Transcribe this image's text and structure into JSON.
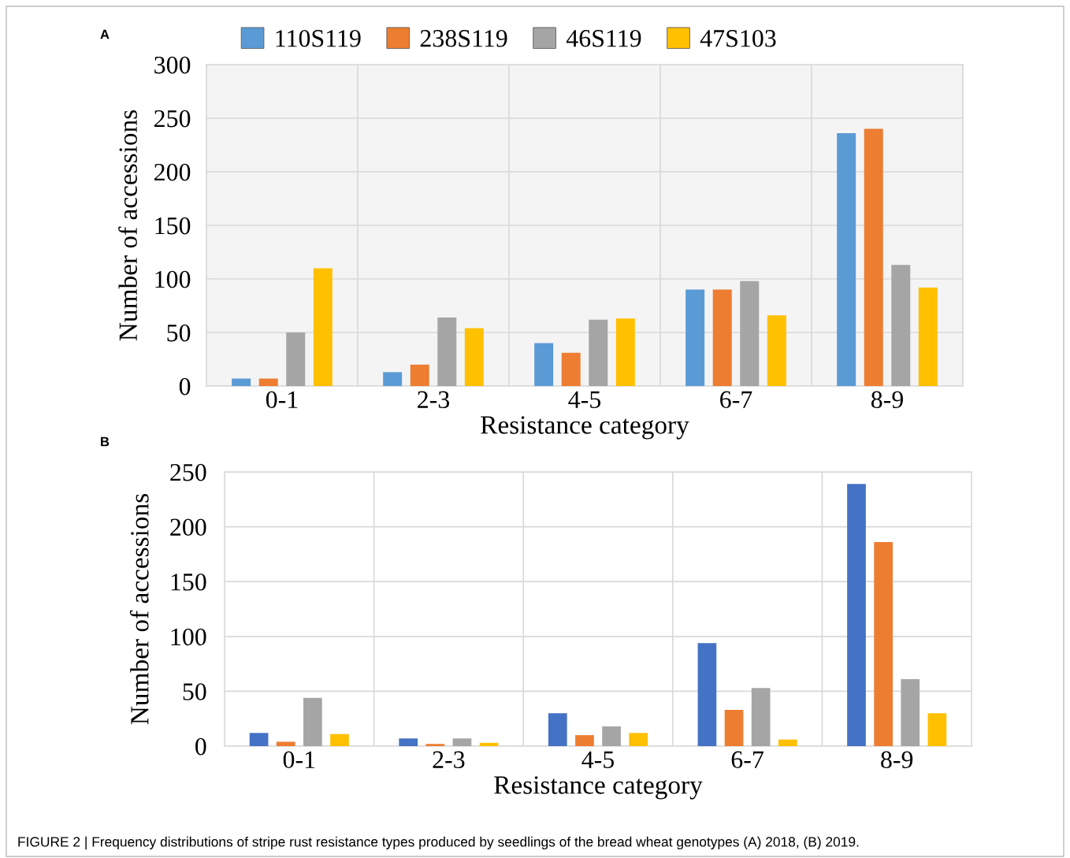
{
  "chart_data": [
    {
      "type": "bar",
      "title": "A",
      "categories": [
        "0-1",
        "2-3",
        "4-5",
        "6-7",
        "8-9"
      ],
      "xlabel": "Resistance category",
      "ylabel": "Number of accessions",
      "series": [
        {
          "name": "110S119",
          "color": "#5b9bd5",
          "values": [
            7,
            13,
            40,
            90,
            236
          ]
        },
        {
          "name": "238S119",
          "color": "#ed7d31",
          "values": [
            7,
            20,
            31,
            90,
            240
          ]
        },
        {
          "name": "46S119",
          "color": "#a5a5a5",
          "values": [
            50,
            64,
            62,
            98,
            113
          ]
        },
        {
          "name": "47S103",
          "color": "#ffc000",
          "values": [
            110,
            54,
            63,
            66,
            92
          ]
        }
      ],
      "ylim": [
        0,
        300
      ],
      "yticks": [
        0,
        50,
        100,
        150,
        200,
        250,
        300
      ],
      "grid": true,
      "legend": "top"
    },
    {
      "type": "bar",
      "title": "B",
      "categories": [
        "0-1",
        "2-3",
        "4-5",
        "6-7",
        "8-9"
      ],
      "xlabel": "Resistance category",
      "ylabel": "Number of accessions",
      "series": [
        {
          "color": "#4472c4",
          "values": [
            12,
            7,
            30,
            94,
            239
          ]
        },
        {
          "color": "#ed7d31",
          "values": [
            4,
            2,
            10,
            33,
            186
          ]
        },
        {
          "color": "#a5a5a5",
          "values": [
            44,
            7,
            18,
            53,
            61
          ]
        },
        {
          "color": "#ffc000",
          "values": [
            11,
            3,
            12,
            6,
            30
          ]
        }
      ],
      "ylim": [
        0,
        250
      ],
      "yticks": [
        0,
        50,
        100,
        150,
        200,
        250
      ],
      "grid": true,
      "annotations": [
        "FIGURE 2 | Frequency distributions of stripe rust resistance types produced by seedlings of the bread wheat genotypes (A) 2018, (B) 2019."
      ]
    }
  ]
}
